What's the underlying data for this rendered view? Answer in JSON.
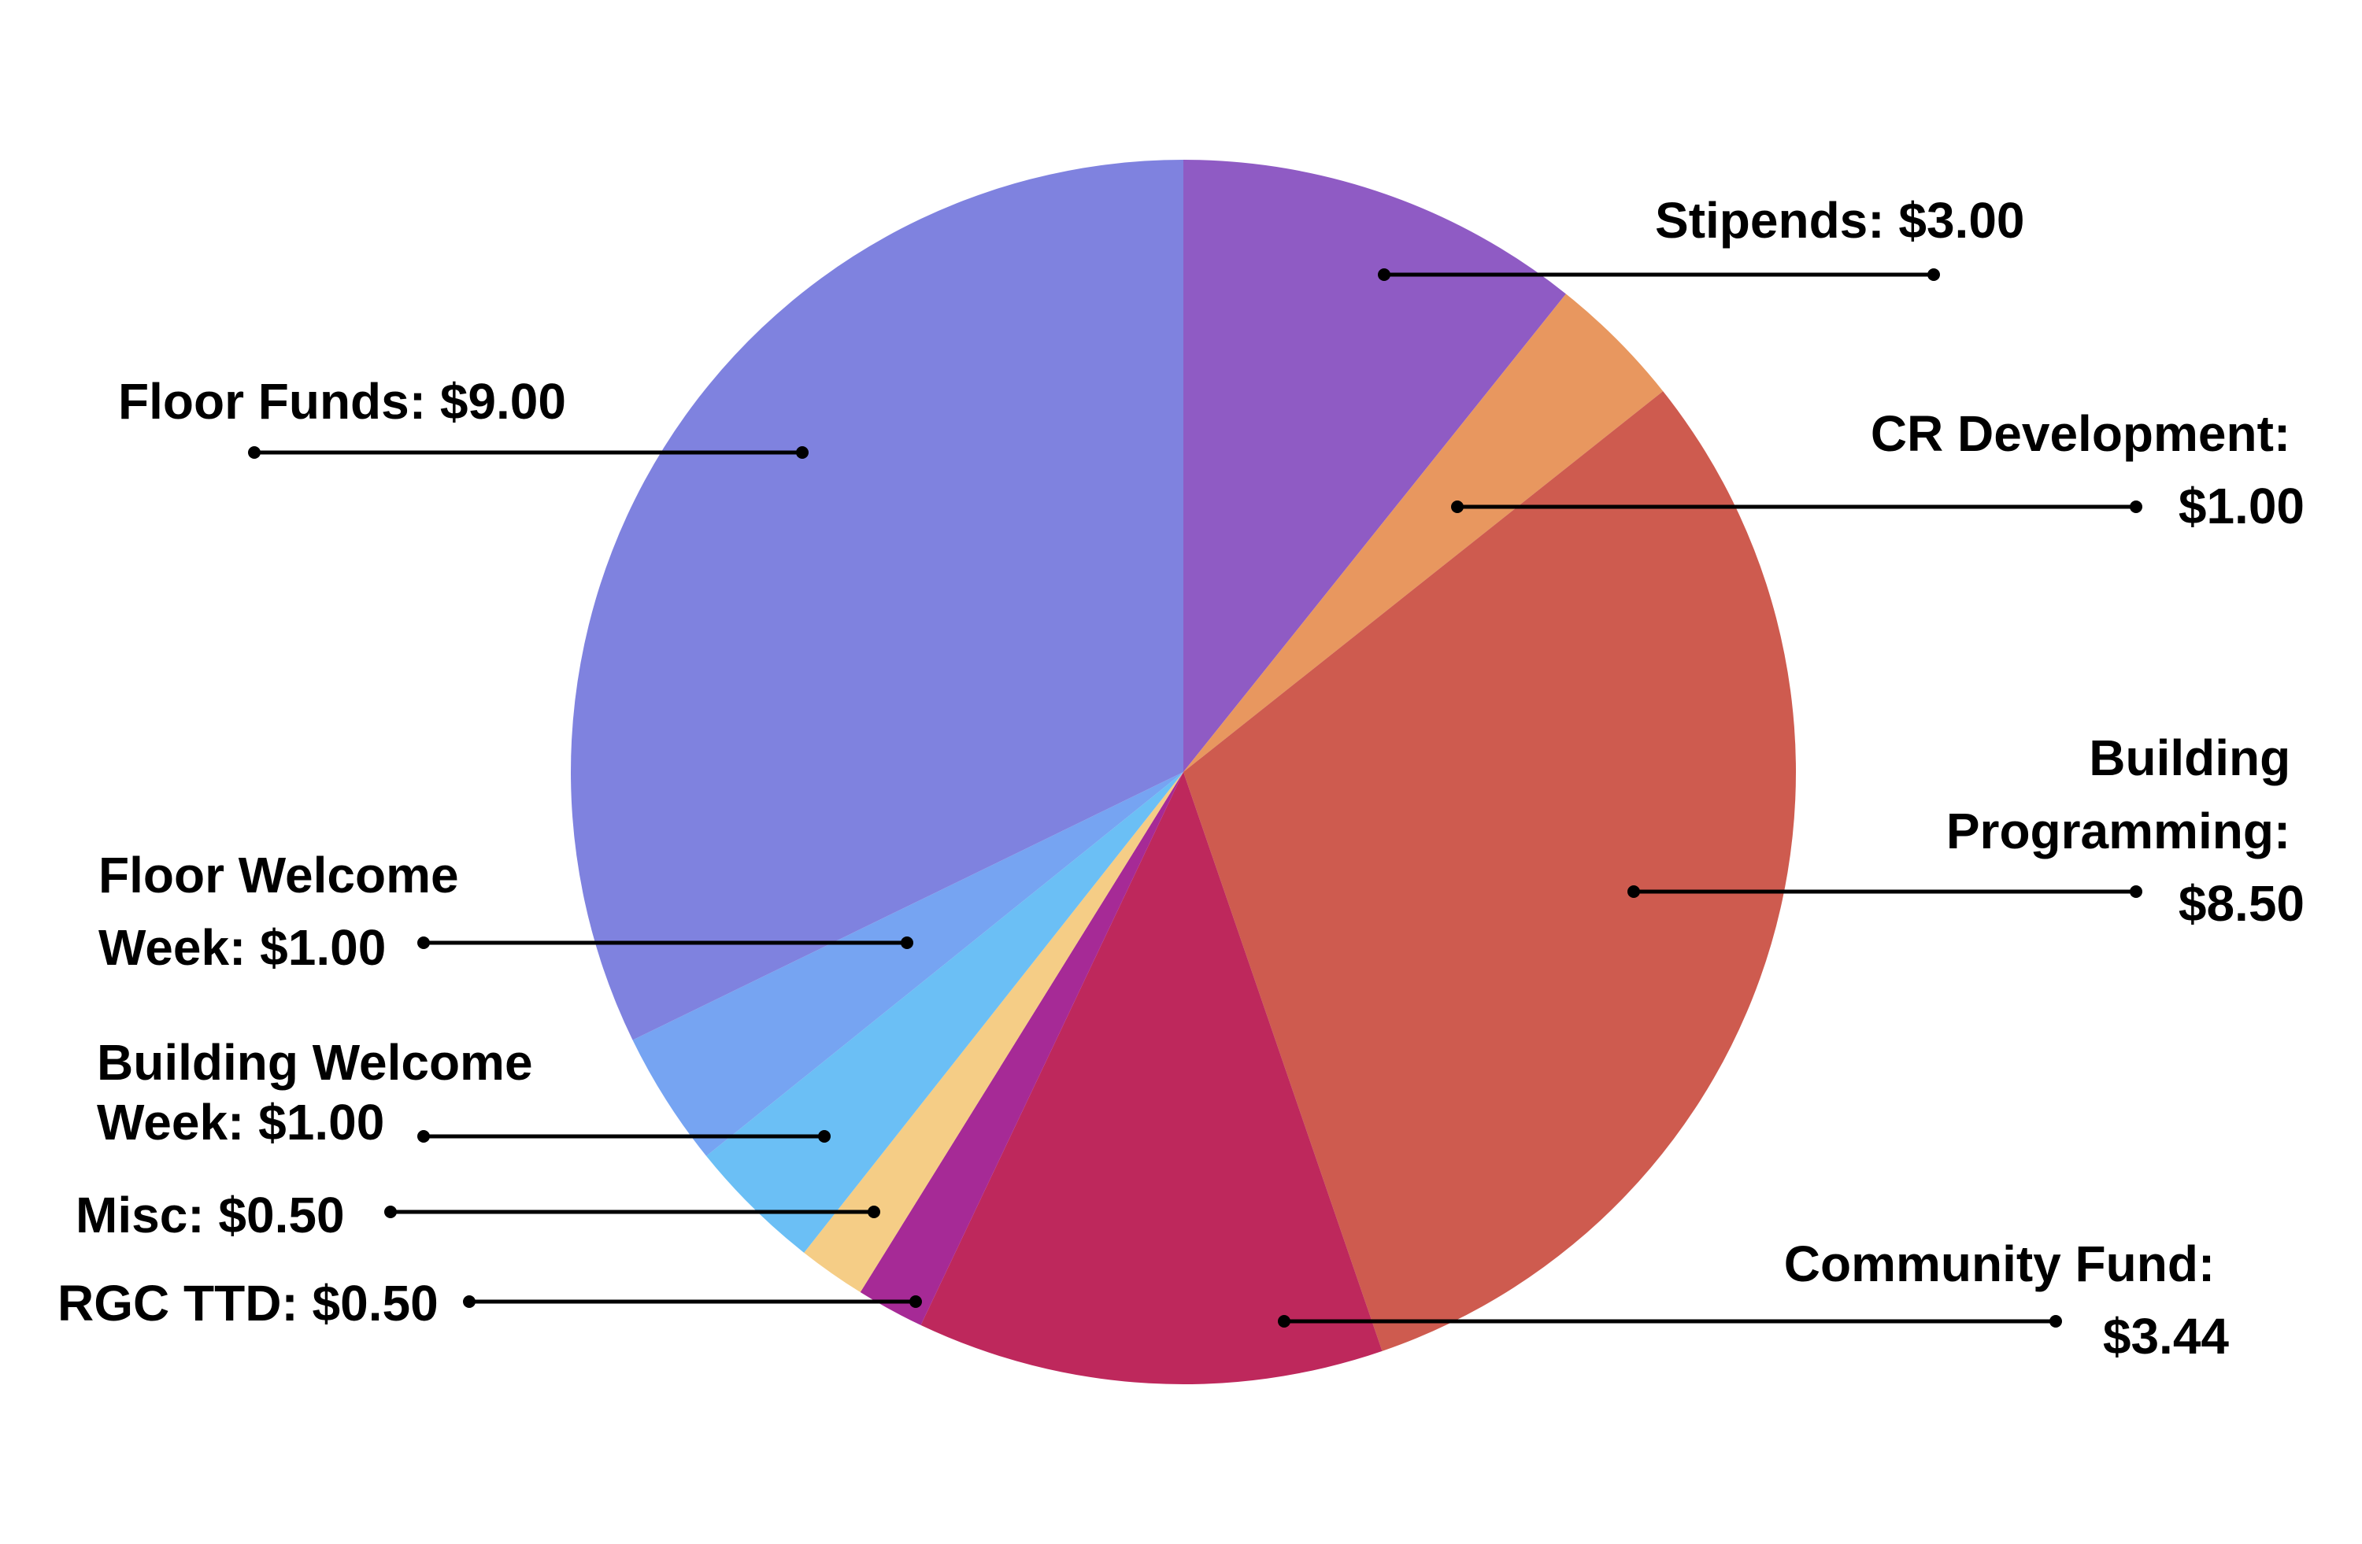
{
  "chart_data": {
    "type": "pie",
    "title": "",
    "start_angle_deg": 0,
    "direction": "clockwise",
    "legend": "none (callout labels)",
    "currency": "$",
    "total": 27.94,
    "slices": [
      {
        "label": "Stipends",
        "value": 3.0,
        "display": "Stipends: $3.00",
        "color": "#8F5BC4"
      },
      {
        "label": "CR Development",
        "value": 1.0,
        "display": "CR Development: $1.00",
        "color": "#E8975F"
      },
      {
        "label": "Building Programming",
        "value": 8.5,
        "display": "Building Programming: $8.50",
        "color": "#CE5B4F"
      },
      {
        "label": "Community Fund",
        "value": 3.44,
        "display": "Community Fund: $3.44",
        "color": "#BE285C"
      },
      {
        "label": "RGC TTD",
        "value": 0.5,
        "display": "RGC TTD: $0.50",
        "color": "#A62A96"
      },
      {
        "label": "Misc",
        "value": 0.5,
        "display": "Misc: $0.50",
        "color": "#F5CD86"
      },
      {
        "label": "Building Welcome Week",
        "value": 1.0,
        "display": "Building Welcome Week: $1.00",
        "color": "#6BBFF5"
      },
      {
        "label": "Floor Welcome Week",
        "value": 1.0,
        "display": "Floor Welcome Week: $1.00",
        "color": "#76A4F2"
      },
      {
        "label": "Floor Funds",
        "value": 9.0,
        "display": "Floor Funds: $9.00",
        "color": "#7F82DF"
      }
    ]
  },
  "labels": {
    "stipends": {
      "lines": [
        "Stipends: $3.00"
      ]
    },
    "cr_development": {
      "lines": [
        "CR Development:",
        "$1.00"
      ]
    },
    "building_programming": {
      "lines": [
        "Building",
        "Programming:",
        "$8.50"
      ]
    },
    "community_fund": {
      "lines": [
        "Community Fund:",
        "$3.44"
      ]
    },
    "floor_funds": {
      "lines": [
        "Floor Funds: $9.00"
      ]
    },
    "floor_welcome_week": {
      "lines": [
        "Floor Welcome",
        "Week: $1.00"
      ]
    },
    "building_welcome_week": {
      "lines": [
        "Building Welcome",
        "Week: $1.00"
      ]
    },
    "misc": {
      "lines": [
        "Misc: $0.50"
      ]
    },
    "rgc_ttd": {
      "lines": [
        "RGC TTD: $0.50"
      ]
    }
  }
}
